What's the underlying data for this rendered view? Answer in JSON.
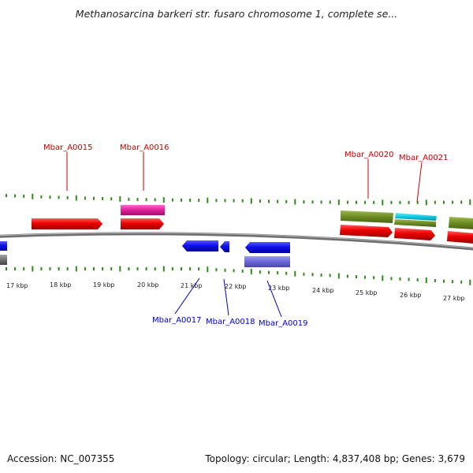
{
  "title": "Methanosarcina barkeri str. fusaro chromosome 1, complete se...",
  "accession": "Accession: NC_007355",
  "summary": "Topology: circular; Length: 4,837,408 bp; Genes: 3,679",
  "colors": {
    "forward_label": "#cc0000",
    "reverse_label": "#0000cc",
    "tick_green": "#2e8b1a",
    "backbone": "#808080"
  },
  "scale_labels": [
    "17 kbp",
    "18 kbp",
    "19 kbp",
    "20 kbp",
    "21 kbp",
    "22 kbp",
    "23 kbp",
    "24 kbp",
    "25 kbp",
    "26 kbp",
    "27 kbp"
  ],
  "genes": [
    {
      "name": "Mbar_A0015",
      "strand": "forward"
    },
    {
      "name": "Mbar_A0016",
      "strand": "forward"
    },
    {
      "name": "Mbar_A0017",
      "strand": "reverse"
    },
    {
      "name": "Mbar_A0018",
      "strand": "reverse"
    },
    {
      "name": "Mbar_A0019",
      "strand": "reverse"
    },
    {
      "name": "Mbar_A0020",
      "strand": "forward"
    },
    {
      "name": "Mbar_A0021",
      "strand": "forward"
    }
  ]
}
